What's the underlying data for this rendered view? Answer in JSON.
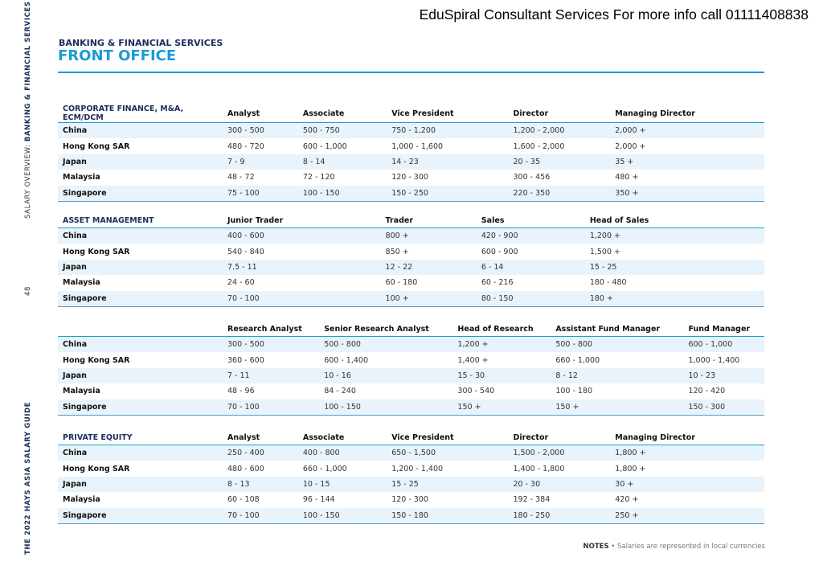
{
  "banner": "EduSpiral Consultant Services For more info call 01111408838",
  "side": {
    "prefix": "SALARY OVERVIEW: ",
    "section": "BANKING & FINANCIAL SERVICES",
    "page": "48",
    "guide": "THE 2022 HAYS ASIA SALARY GUIDE"
  },
  "header": {
    "kicker": "BANKING & FINANCIAL SERVICES",
    "title": "FRONT OFFICE"
  },
  "tables": [
    {
      "section": "CORPORATE FINANCE, M&A, ECM/DCM",
      "columns": [
        "Analyst",
        "Associate",
        "Vice President",
        "Director",
        "Managing Director"
      ],
      "rows": [
        [
          "China",
          "300 - 500",
          "500 - 750",
          "750 - 1,200",
          "1,200 - 2,000",
          "2,000 +"
        ],
        [
          "Hong Kong SAR",
          "480 - 720",
          "600 - 1,000",
          "1,000 - 1,600",
          "1,600 - 2,000",
          "2,000 +"
        ],
        [
          "Japan",
          "7 - 9",
          "8 - 14",
          "14 - 23",
          "20 - 35",
          "35 +"
        ],
        [
          "Malaysia",
          "48 - 72",
          "72 - 120",
          "120 - 300",
          "300 - 456",
          "480 +"
        ],
        [
          "Singapore",
          "75 - 100",
          "100 - 150",
          "150 - 250",
          "220 - 350",
          "350 +"
        ]
      ]
    },
    {
      "section": "ASSET MANAGEMENT",
      "columns": [
        "Junior Trader",
        "Trader",
        "Sales",
        "Head of Sales",
        ""
      ],
      "rows": [
        [
          "China",
          "400 - 600",
          "800 +",
          "420 - 900",
          "1,200 +",
          ""
        ],
        [
          "Hong Kong SAR",
          "540 - 840",
          "850 +",
          "600 - 900",
          "1,500 +",
          ""
        ],
        [
          "Japan",
          "7.5 - 11",
          "12 - 22",
          "6 - 14",
          "15 - 25",
          ""
        ],
        [
          "Malaysia",
          "24 - 60",
          "60 - 180",
          "60 - 216",
          "180 - 480",
          ""
        ],
        [
          "Singapore",
          "70 - 100",
          "100 +",
          "80 - 150",
          "180 +",
          ""
        ]
      ]
    },
    {
      "section": "",
      "columns": [
        "Research Analyst",
        "Senior Research Analyst",
        "Head of Research",
        "Assistant Fund Manager",
        "Fund Manager"
      ],
      "rows": [
        [
          "China",
          "300 - 500",
          "500 - 800",
          "1,200 +",
          "500 - 800",
          "600 - 1,000"
        ],
        [
          "Hong Kong SAR",
          "360 - 600",
          "600 - 1,400",
          "1,400 +",
          "660 - 1,000",
          "1,000 - 1,400"
        ],
        [
          "Japan",
          "7 - 11",
          "10 - 16",
          "15 - 30",
          "8 - 12",
          "10 - 23"
        ],
        [
          "Malaysia",
          "48 - 96",
          "84 - 240",
          "300 - 540",
          "100 - 180",
          "120 - 420"
        ],
        [
          "Singapore",
          "70 - 100",
          "100 - 150",
          "150 +",
          "150 +",
          "150 - 300"
        ]
      ]
    },
    {
      "section": "PRIVATE EQUITY",
      "columns": [
        "Analyst",
        "Associate",
        "Vice President",
        "Director",
        "Managing Director"
      ],
      "rows": [
        [
          "China",
          "250 - 400",
          "400 - 800",
          "650 - 1,500",
          "1,500 - 2,000",
          "1,800 +"
        ],
        [
          "Hong Kong SAR",
          "480 - 600",
          "660 - 1,000",
          "1,200 - 1,400",
          "1,400 - 1,800",
          "1,800 +"
        ],
        [
          "Japan",
          "8 - 13",
          "10 - 15",
          "15 - 25",
          "20 - 30",
          "30 +"
        ],
        [
          "Malaysia",
          "60 - 108",
          "96 - 144",
          "120 - 300",
          "192 - 384",
          "420 +"
        ],
        [
          "Singapore",
          "70 - 100",
          "100 - 150",
          "150 - 180",
          "180 - 250",
          "250 +"
        ]
      ]
    }
  ],
  "notes": {
    "label": "NOTES",
    "sep": " • ",
    "text": "Salaries are represented in local currencies"
  }
}
